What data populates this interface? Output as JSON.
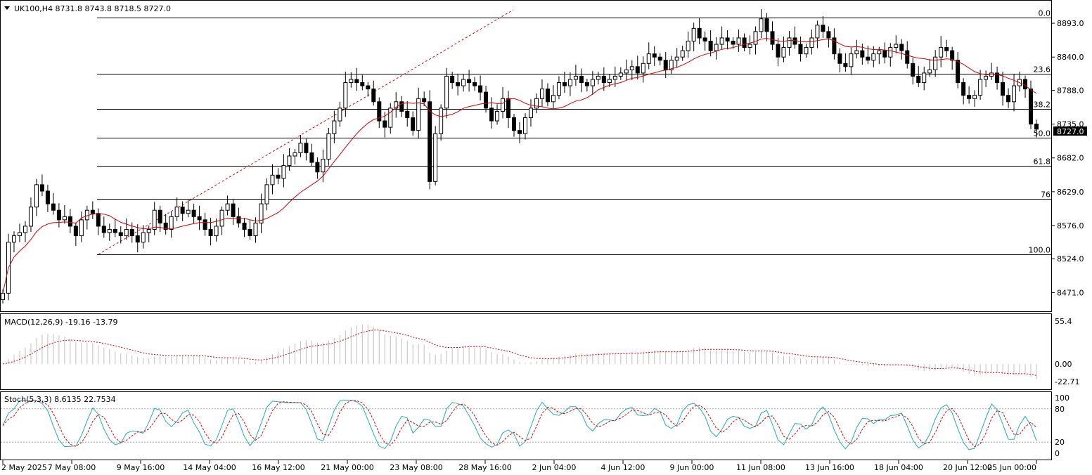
{
  "header": {
    "symbol_line": "UK100,H4  8731.8 8743.8 8718.5 8727.0",
    "triangle_icon": "triangle-down-icon"
  },
  "colors": {
    "background": "#ffffff",
    "grid_border": "#000000",
    "up_candle": "#ffffff",
    "down_candle": "#000000",
    "ma_line": "#dd0000",
    "fib_trend": "#dd0000",
    "macd_hist": "#c0c0c0",
    "macd_signal": "#dd0000",
    "stoch_main": "#20b2aa",
    "stoch_signal": "#dd0000",
    "price_tag_bg": "#000000",
    "price_tag_fg": "#ffffff"
  },
  "price_axis": {
    "ticks": [
      "8893.0",
      "8840.0",
      "8788.0",
      "8735.0",
      "8682.0",
      "8629.0",
      "8576.0",
      "8524.0",
      "8471.0"
    ],
    "current_price_tag": "8727.0"
  },
  "fibonacci": {
    "levels": [
      {
        "label": "0.0",
        "price": 8902
      },
      {
        "label": "23.6",
        "price": 8814
      },
      {
        "label": "38.2",
        "price": 8759
      },
      {
        "label": "50.0",
        "price": 8714
      },
      {
        "label": "61.8",
        "price": 8670
      },
      {
        "label": "76",
        "price": 8618
      },
      {
        "label": "100.0",
        "price": 8531
      }
    ]
  },
  "macd": {
    "label": "MACD(12,26,9) -19.16 -13.79",
    "ticks": [
      "55.4",
      "0.00",
      "-22.71"
    ]
  },
  "stochastic": {
    "label": "Stoch(5,3,3) 8.6135 22.7534",
    "ticks": [
      "100",
      "80",
      "20",
      "0"
    ]
  },
  "time_axis": {
    "labels": [
      "2 May 2025",
      "7 May 08:00",
      "9 May 16:00",
      "14 May 04:00",
      "16 May 12:00",
      "21 May 00:00",
      "23 May 08:00",
      "28 May 16:00",
      "2 Jun 04:00",
      "4 Jun 12:00",
      "9 Jun 00:00",
      "11 Jun 08:00",
      "13 Jun 16:00",
      "18 Jun 04:00",
      "20 Jun 12:00",
      "25 Jun 00:00"
    ]
  },
  "chart_data": {
    "type": "candlestick",
    "symbol": "UK100",
    "timeframe": "H4",
    "last_bar": {
      "open": 8731.8,
      "high": 8743.8,
      "low": 8718.5,
      "close": 8727.0
    },
    "ylim": [
      8445,
      8925
    ],
    "close_series": [
      8470,
      8550,
      8560,
      8565,
      8575,
      8605,
      8640,
      8630,
      8610,
      8600,
      8585,
      8590,
      8575,
      8560,
      8585,
      8600,
      8595,
      8575,
      8565,
      8570,
      8565,
      8560,
      8570,
      8560,
      8550,
      8565,
      8570,
      8600,
      8580,
      8570,
      8590,
      8605,
      8595,
      8600,
      8590,
      8585,
      8570,
      8560,
      8575,
      8600,
      8610,
      8590,
      8580,
      8570,
      8560,
      8580,
      8610,
      8640,
      8655,
      8650,
      8670,
      8685,
      8690,
      8705,
      8690,
      8675,
      8660,
      8680,
      8720,
      8740,
      8760,
      8800,
      8805,
      8800,
      8795,
      8790,
      8770,
      8740,
      8730,
      8760,
      8770,
      8755,
      8745,
      8725,
      8775,
      8770,
      8645,
      8720,
      8760,
      8810,
      8800,
      8795,
      8805,
      8800,
      8795,
      8785,
      8760,
      8740,
      8755,
      8775,
      8745,
      8725,
      8720,
      8745,
      8760,
      8775,
      8790,
      8770,
      8780,
      8800,
      8795,
      8805,
      8810,
      8800,
      8795,
      8805,
      8810,
      8800,
      8805,
      8810,
      8815,
      8820,
      8825,
      8815,
      8830,
      8845,
      8840,
      8835,
      8820,
      8835,
      8840,
      8850,
      8865,
      8885,
      8870,
      8865,
      8850,
      8860,
      8870,
      8865,
      8860,
      8870,
      8855,
      8860,
      8880,
      8900,
      8880,
      8860,
      8840,
      8855,
      8870,
      8860,
      8845,
      8855,
      8870,
      8890,
      8880,
      8870,
      8845,
      8830,
      8825,
      8845,
      8850,
      8840,
      8835,
      8845,
      8850,
      8840,
      8855,
      8860,
      8850,
      8830,
      8810,
      8800,
      8815,
      8820,
      8840,
      8855,
      8850,
      8835,
      8800,
      8780,
      8775,
      8780,
      8805,
      8810,
      8815,
      8800,
      8780,
      8770,
      8795,
      8805,
      8790,
      8735,
      8727
    ],
    "ma_label": "red moving average",
    "macd": {
      "fast": 12,
      "slow": 26,
      "signal": 9,
      "main": -19.16,
      "signal_value": -13.79,
      "ylim": [
        -30,
        60
      ]
    },
    "stochastic": {
      "k": 5,
      "d": 3,
      "slowing": 3,
      "main": 8.6135,
      "signal": 22.7534,
      "ylim": [
        0,
        100
      ],
      "levels": [
        20,
        80
      ]
    }
  }
}
